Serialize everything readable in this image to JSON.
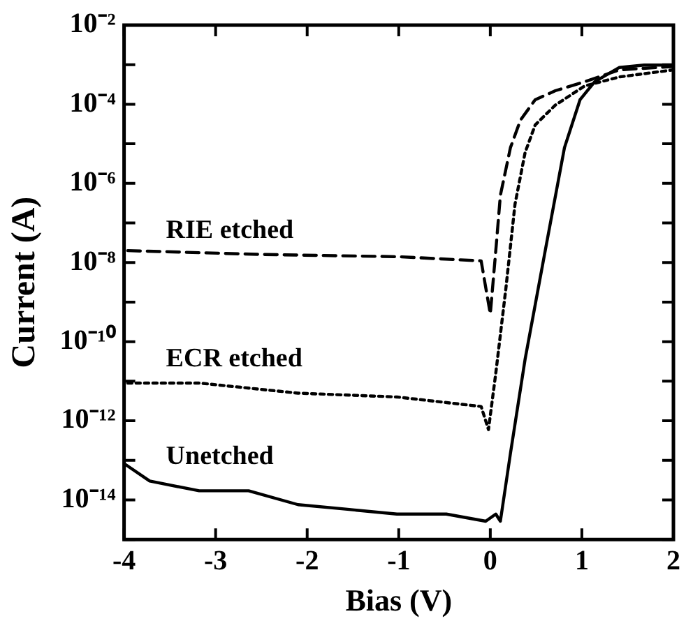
{
  "chart_data": {
    "type": "line",
    "xlabel": "Bias (V)",
    "ylabel": "Current (A)",
    "log": "y",
    "xlim": [
      -4,
      2
    ],
    "xticks": [
      -4,
      -3,
      -2,
      -1,
      0,
      1,
      2
    ],
    "ylim": [
      1e-15,
      0.01
    ],
    "yticks": [
      {
        "value": 1e-15,
        "label": null
      },
      {
        "value": 1e-14,
        "label": "10⁻¹⁴"
      },
      {
        "value": 1e-13,
        "label": null
      },
      {
        "value": 1e-12,
        "label": "10⁻¹²"
      },
      {
        "value": 1e-11,
        "label": null
      },
      {
        "value": 1e-10,
        "label": "10⁻¹⁰"
      },
      {
        "value": 1e-09,
        "label": null
      },
      {
        "value": 1e-08,
        "label": "10⁻⁸"
      },
      {
        "value": 1e-07,
        "label": null
      },
      {
        "value": 1e-06,
        "label": "10⁻⁶"
      },
      {
        "value": 1e-05,
        "label": null
      },
      {
        "value": 0.0001,
        "label": "10⁻⁴"
      },
      {
        "value": 0.001,
        "label": null
      },
      {
        "value": 0.01,
        "label": "10⁻²"
      }
    ],
    "grid": false,
    "legend": false,
    "marker": "none",
    "series": [
      {
        "name": "RIE etched",
        "color": "#000000",
        "line_style": "dashed",
        "x": [
          -3.96,
          -2.5,
          -1,
          -0.1,
          0.0,
          0.06,
          0.11,
          0.22,
          0.33,
          0.49,
          0.71,
          1.03,
          1.41,
          2.0
        ],
        "values": [
          2e-08,
          1.6e-08,
          1.4e-08,
          1.1e-08,
          5e-10,
          2e-08,
          5e-07,
          8e-06,
          4e-05,
          0.00013,
          0.00022,
          0.00037,
          0.00074,
          0.0009
        ]
      },
      {
        "name": "ECR etched",
        "color": "#000000",
        "line_style": "dotted",
        "x": [
          -3.96,
          -3.18,
          -2.1,
          -1.02,
          -0.1,
          -0.02,
          0.06,
          0.17,
          0.27,
          0.38,
          0.49,
          0.71,
          1.03,
          1.41,
          2.0
        ],
        "values": [
          9e-12,
          9e-12,
          5e-12,
          4e-12,
          2.3e-12,
          6e-13,
          1.6e-11,
          2.2e-09,
          3e-07,
          6e-06,
          3e-05,
          9.5e-05,
          0.00029,
          0.00049,
          0.00074
        ]
      },
      {
        "name": "Unetched",
        "color": "#000000",
        "line_style": "solid",
        "x": [
          -3.99,
          -3.72,
          -3.18,
          -2.64,
          -2.1,
          -1.56,
          -1.02,
          -0.48,
          -0.05,
          0.06,
          0.11,
          0.22,
          0.38,
          0.6,
          0.81,
          0.98,
          1.14,
          1.41,
          1.68,
          2.0
        ],
        "values": [
          8e-14,
          3e-14,
          1.7e-14,
          1.7e-14,
          7.6e-15,
          5.8e-15,
          4.4e-15,
          4.4e-15,
          2.9e-15,
          4.4e-15,
          2.9e-15,
          1.5e-13,
          3.6e-11,
          2e-08,
          8e-06,
          0.00013,
          0.00037,
          0.00085,
          0.00098,
          0.00098
        ]
      }
    ]
  }
}
